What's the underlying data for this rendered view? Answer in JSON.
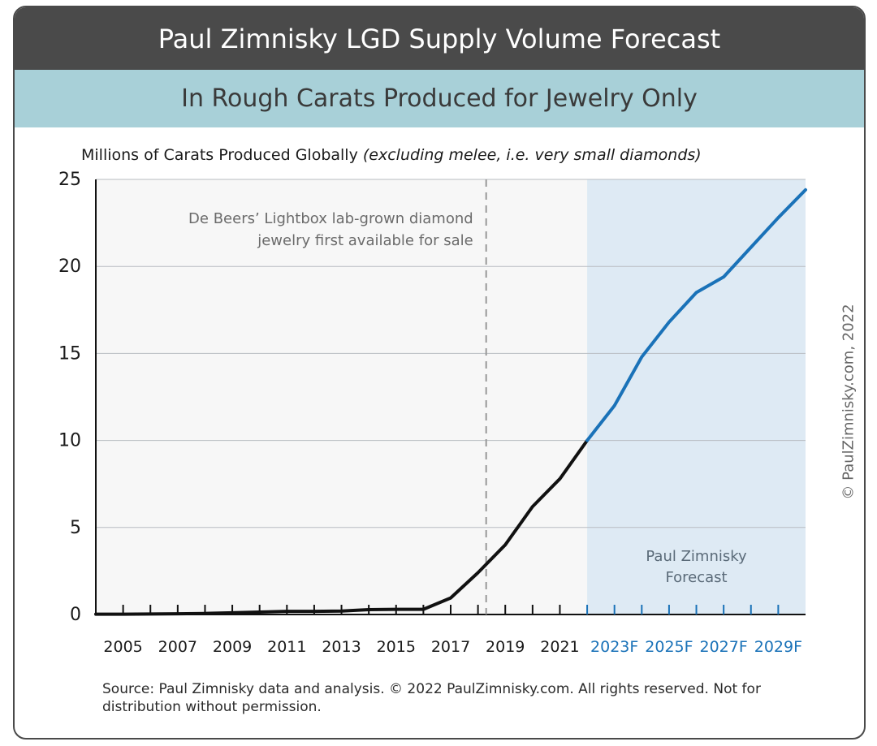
{
  "title": "Paul Zimnisky LGD Supply Volume Forecast",
  "subtitle": "In Rough Carats Produced for Jewelry Only",
  "colors": {
    "title_bg": "#4a4a4a",
    "subtitle_bg": "#a8d0d8",
    "forecast_bg": "#deeaf4",
    "history_line": "#111111",
    "forecast_line": "#1a72b8",
    "forecast_tick": "#1a72b8"
  },
  "chart_data": {
    "type": "line",
    "title": "Paul Zimnisky LGD Supply Volume Forecast",
    "subtitle": "In Rough Carats Produced for Jewelry Only",
    "ylabel_main": "Millions of Carats Produced Globally",
    "ylabel_note": "(excluding melee, i.e. very small diamonds)",
    "xlabel": "",
    "ylim": [
      0,
      25
    ],
    "yticks": [
      0,
      5,
      10,
      15,
      20,
      25
    ],
    "grid": "horizontal",
    "x_tick_labels": [
      "2005",
      "2007",
      "2009",
      "2011",
      "2013",
      "2015",
      "2017",
      "2019",
      "2021",
      "2023F",
      "2025F",
      "2027F",
      "2029F"
    ],
    "x_tick_label_years": [
      2005,
      2007,
      2009,
      2011,
      2013,
      2015,
      2017,
      2019,
      2021,
      2023,
      2025,
      2027,
      2029
    ],
    "forecast_tick_labels": [
      "2023F",
      "2025F",
      "2027F",
      "2029F"
    ],
    "xlim": [
      2004,
      2030
    ],
    "series": [
      {
        "name": "",
        "x": [
          2004,
          2005,
          2006,
          2007,
          2008,
          2009,
          2010,
          2011,
          2012,
          2013,
          2014,
          2015,
          2016,
          2017,
          2018,
          2019,
          2020,
          2021,
          2022
        ],
        "y": [
          0.02,
          0.02,
          0.03,
          0.04,
          0.06,
          0.1,
          0.14,
          0.18,
          0.18,
          0.2,
          0.28,
          0.3,
          0.3,
          0.95,
          2.4,
          4.0,
          6.2,
          7.8,
          10.0
        ]
      },
      {
        "name": "",
        "x": [
          2022,
          2023,
          2024,
          2025,
          2026,
          2027,
          2028,
          2029,
          2030
        ],
        "y": [
          10.0,
          12.0,
          14.8,
          16.8,
          18.5,
          19.4,
          21.1,
          22.8,
          24.4
        ]
      }
    ],
    "forecast_region": {
      "from": 2022,
      "to": 2030
    },
    "annotations": [
      {
        "text_lines": [
          "De Beers’ Lightbox lab-grown diamond",
          "jewelry first available for sale"
        ],
        "x": 2018.3,
        "style": "dashed-vertical-line"
      },
      {
        "text_lines": [
          "Paul Zimnisky",
          "Forecast"
        ],
        "region": "forecast"
      }
    ]
  },
  "copyright": "© PaulZimnisky.com, 2022",
  "source_text": "Source: Paul Zimnisky data and analysis. © 2022 PaulZimnisky.com. All rights reserved. Not for distribution without permission."
}
